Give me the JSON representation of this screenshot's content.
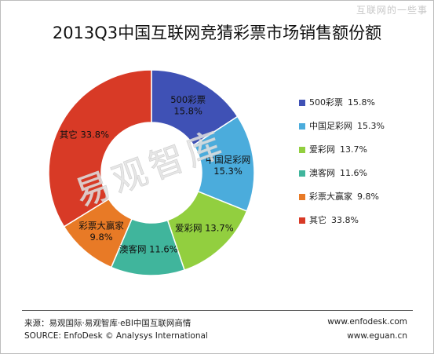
{
  "watermark_top": "互联网的一些事",
  "watermark_center": "易观智库",
  "footer": {
    "source_cn": "来源：易观国际·易观智库·eBI中国互联网商情",
    "source_en": "SOURCE: EnfoDesk © Analysys International",
    "url_enfodesk": "www.enfodesk.com",
    "url_eguan": "www.eguan.cn"
  },
  "chart_data": {
    "type": "pie",
    "donut": true,
    "title": "2013Q3中国互联网竞猜彩票市场销售额份额",
    "legend_position": "right",
    "slices": [
      {
        "label": "500彩票",
        "value": 15.8,
        "value_text": "15.8%",
        "color": "#3F51B5"
      },
      {
        "label": "中国足彩网",
        "value": 15.3,
        "value_text": "15.3%",
        "color": "#4BACDC"
      },
      {
        "label": "爱彩网",
        "value": 13.7,
        "value_text": "13.7%",
        "color": "#92CF3F"
      },
      {
        "label": "澳客网",
        "value": 11.6,
        "value_text": "11.6%",
        "color": "#40B59C"
      },
      {
        "label": "彩票大赢家",
        "value": 9.8,
        "value_text": "9.8%",
        "color": "#E87A26"
      },
      {
        "label": "其它",
        "value": 33.8,
        "value_text": "33.8%",
        "color": "#D83A26"
      }
    ]
  }
}
